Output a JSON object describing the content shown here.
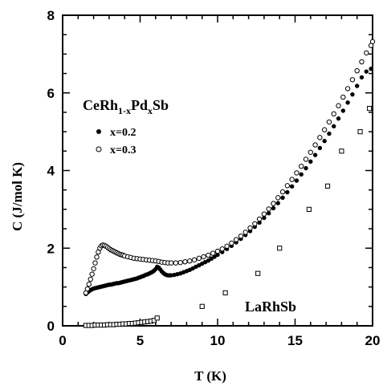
{
  "chart_data": {
    "type": "scatter",
    "xlabel": "T (K)",
    "ylabel": "C (J/mol K)",
    "xlim": [
      0,
      20
    ],
    "ylim": [
      0,
      8
    ],
    "xticks": [
      0,
      5,
      10,
      15,
      20
    ],
    "yticks": [
      0,
      2,
      4,
      6,
      8
    ],
    "grid": false,
    "legend": {
      "title_parts": [
        "CeRh",
        "1-x",
        "Pd",
        "x",
        "Sb"
      ],
      "entries": [
        {
          "label": "x=0.2",
          "marker": "filled-circle"
        },
        {
          "label": "x=0.3",
          "marker": "open-circle"
        }
      ],
      "placement": "upper-left"
    },
    "annotations": [
      {
        "text": "LaRhSb",
        "x": 13.8,
        "y": 0.55
      }
    ],
    "series": [
      {
        "name": "x=0.2",
        "marker": "filled-circle",
        "x": [
          1.5,
          1.6,
          1.7,
          1.8,
          1.9,
          2.0,
          2.1,
          2.2,
          2.3,
          2.4,
          2.5,
          2.6,
          2.7,
          2.8,
          2.9,
          3.0,
          3.1,
          3.2,
          3.3,
          3.4,
          3.5,
          3.6,
          3.7,
          3.8,
          3.9,
          4.0,
          4.1,
          4.2,
          4.3,
          4.4,
          4.5,
          4.6,
          4.7,
          4.8,
          4.9,
          5.0,
          5.1,
          5.2,
          5.3,
          5.4,
          5.5,
          5.6,
          5.7,
          5.8,
          5.9,
          6.0,
          6.1,
          6.2,
          6.3,
          6.4,
          6.5,
          6.6,
          6.7,
          6.8,
          6.9,
          7.0,
          7.2,
          7.4,
          7.6,
          7.8,
          8.0,
          8.2,
          8.4,
          8.6,
          8.8,
          9.0,
          9.2,
          9.4,
          9.6,
          9.8,
          10.0,
          10.3,
          10.6,
          10.9,
          11.2,
          11.5,
          11.8,
          12.1,
          12.4,
          12.7,
          13.0,
          13.3,
          13.6,
          13.9,
          14.2,
          14.5,
          14.8,
          15.1,
          15.4,
          15.7,
          16.0,
          16.3,
          16.6,
          16.9,
          17.2,
          17.5,
          17.8,
          18.1,
          18.4,
          18.7,
          19.0,
          19.3,
          19.6,
          19.9
        ],
        "y": [
          0.82,
          0.86,
          0.89,
          0.92,
          0.94,
          0.96,
          0.97,
          0.98,
          0.99,
          1.0,
          1.01,
          1.02,
          1.03,
          1.04,
          1.05,
          1.06,
          1.06,
          1.07,
          1.08,
          1.09,
          1.1,
          1.1,
          1.11,
          1.12,
          1.13,
          1.14,
          1.15,
          1.16,
          1.17,
          1.18,
          1.19,
          1.2,
          1.21,
          1.22,
          1.24,
          1.25,
          1.27,
          1.28,
          1.3,
          1.32,
          1.33,
          1.35,
          1.37,
          1.39,
          1.42,
          1.46,
          1.52,
          1.5,
          1.45,
          1.4,
          1.36,
          1.33,
          1.31,
          1.3,
          1.3,
          1.3,
          1.31,
          1.33,
          1.35,
          1.38,
          1.41,
          1.44,
          1.48,
          1.52,
          1.56,
          1.6,
          1.64,
          1.68,
          1.73,
          1.78,
          1.83,
          1.9,
          1.98,
          2.06,
          2.15,
          2.24,
          2.34,
          2.44,
          2.55,
          2.66,
          2.78,
          2.9,
          3.03,
          3.16,
          3.3,
          3.44,
          3.59,
          3.74,
          3.9,
          4.06,
          4.23,
          4.4,
          4.58,
          4.76,
          4.95,
          5.14,
          5.34,
          5.54,
          5.75,
          5.96,
          6.18,
          6.4,
          6.55,
          6.62
        ]
      },
      {
        "name": "x=0.3",
        "marker": "open-circle",
        "x": [
          1.5,
          1.6,
          1.7,
          1.8,
          1.9,
          2.0,
          2.1,
          2.2,
          2.3,
          2.4,
          2.5,
          2.6,
          2.7,
          2.8,
          2.9,
          3.0,
          3.1,
          3.2,
          3.3,
          3.4,
          3.5,
          3.6,
          3.7,
          3.8,
          3.9,
          4.0,
          4.2,
          4.4,
          4.6,
          4.8,
          5.0,
          5.2,
          5.4,
          5.6,
          5.8,
          6.0,
          6.2,
          6.4,
          6.6,
          6.8,
          7.0,
          7.3,
          7.6,
          7.9,
          8.2,
          8.5,
          8.8,
          9.1,
          9.4,
          9.7,
          10.0,
          10.3,
          10.6,
          10.9,
          11.2,
          11.5,
          11.8,
          12.1,
          12.4,
          12.7,
          13.0,
          13.3,
          13.6,
          13.9,
          14.2,
          14.5,
          14.8,
          15.1,
          15.4,
          15.7,
          16.0,
          16.3,
          16.6,
          16.9,
          17.2,
          17.5,
          17.8,
          18.1,
          18.4,
          18.7,
          19.0,
          19.3,
          19.6,
          19.9,
          20.0
        ],
        "y": [
          0.85,
          0.95,
          1.07,
          1.2,
          1.33,
          1.47,
          1.62,
          1.77,
          1.9,
          2.0,
          2.06,
          2.08,
          2.07,
          2.05,
          2.02,
          1.99,
          1.96,
          1.94,
          1.92,
          1.9,
          1.88,
          1.86,
          1.84,
          1.83,
          1.82,
          1.8,
          1.78,
          1.76,
          1.74,
          1.73,
          1.72,
          1.71,
          1.7,
          1.69,
          1.68,
          1.67,
          1.66,
          1.64,
          1.63,
          1.62,
          1.62,
          1.62,
          1.63,
          1.65,
          1.67,
          1.7,
          1.74,
          1.78,
          1.82,
          1.87,
          1.92,
          1.98,
          2.05,
          2.13,
          2.22,
          2.31,
          2.41,
          2.52,
          2.63,
          2.75,
          2.88,
          3.01,
          3.15,
          3.3,
          3.45,
          3.61,
          3.77,
          3.94,
          4.11,
          4.29,
          4.47,
          4.66,
          4.85,
          5.05,
          5.25,
          5.46,
          5.67,
          5.89,
          6.11,
          6.34,
          6.57,
          6.8,
          7.03,
          7.22,
          7.32
        ]
      },
      {
        "name": "LaRhSb",
        "marker": "open-square",
        "x": [
          1.5,
          1.7,
          1.9,
          2.1,
          2.3,
          2.5,
          2.7,
          2.9,
          3.1,
          3.3,
          3.5,
          3.7,
          3.9,
          4.1,
          4.3,
          4.5,
          4.7,
          4.9,
          5.1,
          5.3,
          5.5,
          5.7,
          5.9,
          6.1,
          9.0,
          10.5,
          12.6,
          14.0,
          15.9,
          17.1,
          18.0,
          19.2,
          19.8
        ],
        "y": [
          0.01,
          0.01,
          0.01,
          0.02,
          0.02,
          0.02,
          0.02,
          0.03,
          0.03,
          0.03,
          0.04,
          0.04,
          0.05,
          0.05,
          0.06,
          0.06,
          0.07,
          0.08,
          0.09,
          0.1,
          0.11,
          0.12,
          0.14,
          0.2,
          0.5,
          0.85,
          1.35,
          2.0,
          3.0,
          3.6,
          4.5,
          5.0,
          5.6
        ]
      }
    ]
  }
}
